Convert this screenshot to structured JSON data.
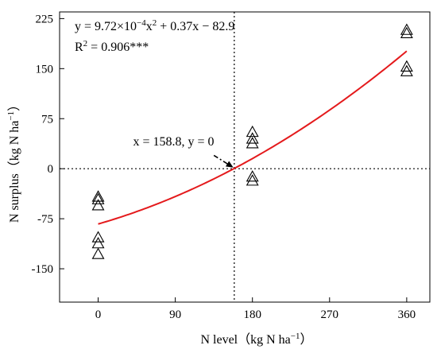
{
  "chart_data": {
    "type": "scatter",
    "xlabel": "N level（kg N ha",
    "xlabel_sup": "−1",
    "xlabel_end": "）",
    "ylabel": "N surplus（kg N ha",
    "ylabel_sup": "−1",
    "ylabel_end": "）",
    "xlim": [
      -45,
      387
    ],
    "ylim": [
      -200,
      235
    ],
    "xticks": [
      0,
      90,
      180,
      270,
      360
    ],
    "yticks": [
      -150,
      -75,
      0,
      75,
      150,
      225
    ],
    "grid": false,
    "marker": "open-triangle",
    "points": [
      {
        "x": 0,
        "y": -42
      },
      {
        "x": 0,
        "y": -46
      },
      {
        "x": 0,
        "y": -55
      },
      {
        "x": 0,
        "y": -103
      },
      {
        "x": 0,
        "y": -112
      },
      {
        "x": 0,
        "y": -128
      },
      {
        "x": 180,
        "y": 55
      },
      {
        "x": 180,
        "y": 45
      },
      {
        "x": 180,
        "y": 38
      },
      {
        "x": 180,
        "y": -12
      },
      {
        "x": 180,
        "y": -18
      },
      {
        "x": 360,
        "y": 208
      },
      {
        "x": 360,
        "y": 203
      },
      {
        "x": 360,
        "y": 153
      },
      {
        "x": 360,
        "y": 146
      }
    ],
    "fit": {
      "a": 0.000972,
      "b": 0.37,
      "c": -82.9,
      "x_range": [
        0,
        360
      ],
      "color": "#e41a1c",
      "equation_text": {
        "prefix": "y = 9.72×10",
        "sup": "−4",
        "middle": "x",
        "sup2": "2",
        "suffix": " + 0.37x − 82.9"
      },
      "r2_text": {
        "prefix": "R",
        "sup": "2",
        "suffix": " = 0.906***"
      }
    },
    "reference_lines": {
      "x": 158.8,
      "y": 0
    },
    "annotation": {
      "text": "x = 158.8, y = 0",
      "label_x": 88,
      "label_y": 35,
      "arrow_from": [
        135,
        20
      ],
      "arrow_to": [
        158.8,
        0
      ]
    }
  }
}
